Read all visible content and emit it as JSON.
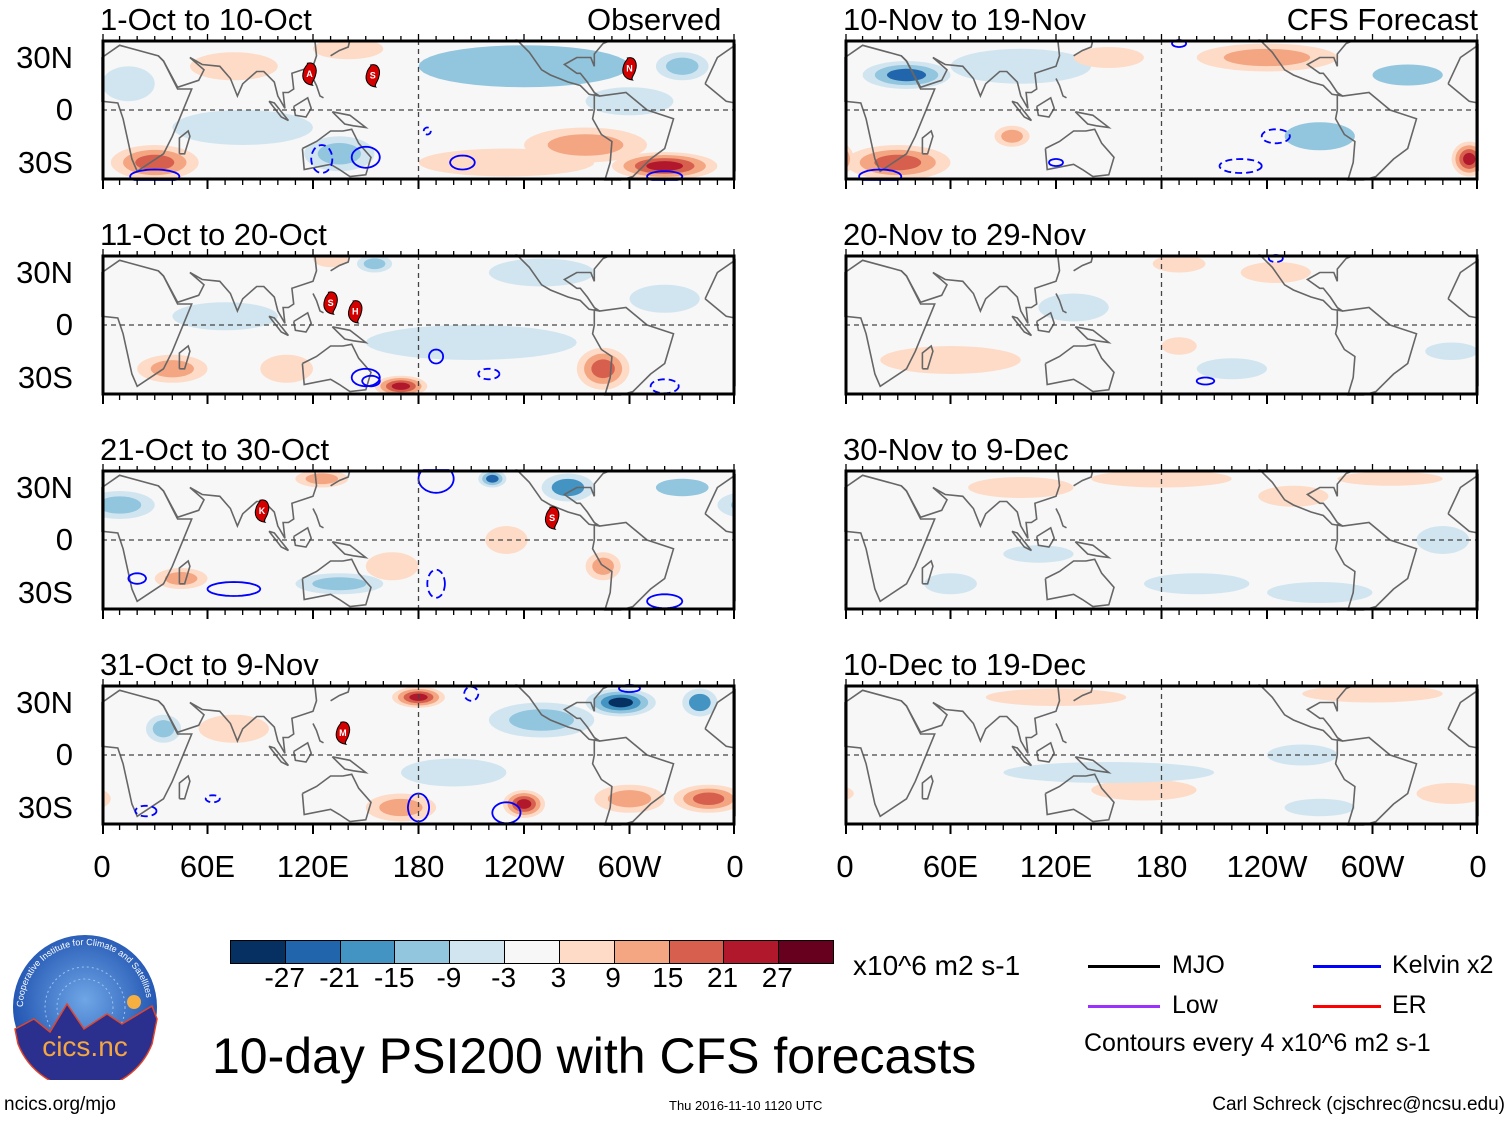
{
  "figure_title": "10-day PSI200 with CFS forecasts",
  "header": {
    "left_label": "Observed",
    "right_label": "CFS Forecast"
  },
  "lat_labels": [
    "30N",
    "0",
    "30S"
  ],
  "lon_labels": [
    "0",
    "60E",
    "120E",
    "180",
    "120W",
    "60W",
    "0"
  ],
  "colorbar": {
    "ticks": [
      "-27",
      "-21",
      "-15",
      "-9",
      "-3",
      "3",
      "9",
      "15",
      "21",
      "27"
    ],
    "colors": [
      "#053061",
      "#2166ac",
      "#4393c3",
      "#92c5de",
      "#d1e5f0",
      "#f7f7f7",
      "#fddbc7",
      "#f4a582",
      "#d6604d",
      "#b2182b",
      "#67001f"
    ],
    "units": "x10^6 m2 s-1"
  },
  "legend": {
    "items": [
      {
        "label": "MJO",
        "color": "#000000"
      },
      {
        "label": "Kelvin x2",
        "color": "#0000ff"
      },
      {
        "label": "Low",
        "color": "#9b30ff"
      },
      {
        "label": "ER",
        "color": "#ff0000"
      }
    ],
    "note": "Contours every 4 x10^6 m2 s-1"
  },
  "footer": {
    "url": "ncics.org/mjo",
    "timestamp": "Thu 2016-11-10 1120 UTC",
    "credit": "Carl Schreck (cjschrec@ncsu.edu)"
  },
  "logo": {
    "name": "cics.nc",
    "ring_text": "Cooperative Institute for Climate and Satellites"
  },
  "chart_data": {
    "type": "heatmap",
    "variable": "PSI200 anomaly",
    "units": "x10^6 m2 s-1",
    "lat_range": [
      -40,
      40
    ],
    "lon_range": [
      0,
      360
    ],
    "panels_observed": [
      {
        "title": "1-Oct to 10-Oct",
        "storms": [
          {
            "letter": "A",
            "lon": 118,
            "lat": 21
          },
          {
            "letter": "S",
            "lon": 154,
            "lat": 20
          },
          {
            "letter": "N",
            "lon": 300,
            "lat": 24
          }
        ],
        "features": [
          [
            30,
            -30,
            25,
            10,
            18
          ],
          [
            320,
            -32,
            30,
            8,
            27
          ],
          [
            275,
            -20,
            35,
            10,
            12
          ],
          [
            230,
            -30,
            50,
            8,
            8
          ],
          [
            140,
            35,
            20,
            6,
            9
          ],
          [
            75,
            25,
            25,
            8,
            5
          ],
          [
            240,
            25,
            60,
            12,
            -9
          ],
          [
            330,
            25,
            15,
            8,
            -12
          ],
          [
            135,
            -25,
            20,
            10,
            -12
          ],
          [
            80,
            -10,
            40,
            10,
            -4
          ],
          [
            15,
            15,
            15,
            10,
            -4
          ],
          [
            300,
            5,
            25,
            8,
            -6
          ]
        ],
        "contours": [
          [
            125,
            -28,
            6,
            8,
            1
          ],
          [
            150,
            -27,
            8,
            6,
            0
          ],
          [
            205,
            -30,
            7,
            4,
            0
          ],
          [
            30,
            -38,
            14,
            4,
            0
          ],
          [
            320,
            -38,
            10,
            3,
            0
          ],
          [
            185,
            -12,
            2,
            2,
            1
          ]
        ]
      },
      {
        "title": "11-Oct to 20-Oct",
        "storms": [
          {
            "letter": "S",
            "lon": 130,
            "lat": 13
          },
          {
            "letter": "H",
            "lon": 144,
            "lat": 8
          }
        ],
        "features": [
          [
            40,
            -25,
            20,
            8,
            15
          ],
          [
            170,
            -35,
            15,
            6,
            24
          ],
          [
            285,
            -25,
            15,
            12,
            21
          ],
          [
            105,
            -25,
            15,
            8,
            9
          ],
          [
            130,
            38,
            10,
            5,
            9
          ],
          [
            155,
            35,
            10,
            5,
            -12
          ],
          [
            320,
            15,
            20,
            8,
            -6
          ],
          [
            210,
            -10,
            60,
            10,
            -4
          ],
          [
            250,
            30,
            30,
            8,
            -6
          ],
          [
            70,
            5,
            30,
            8,
            -4
          ]
        ],
        "contours": [
          [
            150,
            -30,
            8,
            5,
            0
          ],
          [
            153,
            -32,
            5,
            3,
            0
          ],
          [
            190,
            -18,
            4,
            4,
            0
          ],
          [
            220,
            -28,
            6,
            3,
            1
          ],
          [
            320,
            -35,
            8,
            4,
            1
          ]
        ]
      },
      {
        "title": "21-Oct to 30-Oct",
        "storms": [
          {
            "letter": "K",
            "lon": 91,
            "lat": 17
          },
          {
            "letter": "S",
            "lon": 256,
            "lat": 13
          }
        ],
        "features": [
          [
            125,
            35,
            15,
            5,
            12
          ],
          [
            45,
            -22,
            15,
            6,
            12
          ],
          [
            165,
            -15,
            15,
            8,
            9
          ],
          [
            285,
            -15,
            10,
            8,
            12
          ],
          [
            230,
            0,
            12,
            8,
            6
          ],
          [
            10,
            20,
            20,
            8,
            -12
          ],
          [
            135,
            -25,
            25,
            6,
            -12
          ],
          [
            265,
            30,
            15,
            8,
            -15
          ],
          [
            222,
            35,
            8,
            5,
            -21
          ],
          [
            330,
            30,
            15,
            5,
            -9
          ]
        ],
        "contours": [
          [
            75,
            -28,
            15,
            4,
            0
          ],
          [
            190,
            -25,
            5,
            8,
            1
          ],
          [
            190,
            35,
            10,
            8,
            0
          ],
          [
            20,
            -22,
            5,
            3,
            0
          ],
          [
            320,
            -35,
            10,
            4,
            0
          ]
        ]
      },
      {
        "title": "31-Oct to 9-Nov",
        "storms": [
          {
            "letter": "M",
            "lon": 137,
            "lat": 13
          }
        ],
        "features": [
          [
            180,
            33,
            15,
            6,
            27
          ],
          [
            240,
            -28,
            12,
            8,
            24
          ],
          [
            345,
            -25,
            20,
            8,
            21
          ],
          [
            170,
            -30,
            20,
            8,
            15
          ],
          [
            75,
            15,
            20,
            8,
            6
          ],
          [
            300,
            -25,
            20,
            8,
            12
          ],
          [
            295,
            30,
            20,
            8,
            -27
          ],
          [
            250,
            20,
            30,
            10,
            -12
          ],
          [
            340,
            30,
            10,
            8,
            -15
          ],
          [
            35,
            15,
            10,
            8,
            -12
          ],
          [
            200,
            -10,
            30,
            8,
            -6
          ]
        ],
        "contours": [
          [
            180,
            -30,
            6,
            8,
            0
          ],
          [
            230,
            -33,
            8,
            6,
            0
          ],
          [
            300,
            38,
            6,
            2,
            0
          ],
          [
            210,
            35,
            4,
            4,
            1
          ],
          [
            25,
            -32,
            6,
            3,
            1
          ],
          [
            63,
            -25,
            4,
            2,
            1
          ]
        ]
      }
    ],
    "panels_forecast": [
      {
        "title": "10-Nov to 19-Nov",
        "storms": [],
        "features": [
          [
            35,
            20,
            25,
            8,
            -21
          ],
          [
            30,
            -30,
            30,
            10,
            18
          ],
          [
            355,
            -28,
            10,
            10,
            24
          ],
          [
            240,
            30,
            40,
            8,
            12
          ],
          [
            95,
            -15,
            10,
            6,
            15
          ],
          [
            270,
            -15,
            20,
            8,
            -9
          ],
          [
            100,
            25,
            40,
            10,
            -6
          ],
          [
            150,
            30,
            20,
            6,
            9
          ],
          [
            320,
            20,
            20,
            6,
            -9
          ]
        ],
        "contours": [
          [
            245,
            -15,
            8,
            4,
            1
          ],
          [
            120,
            -30,
            4,
            2,
            0
          ],
          [
            225,
            -32,
            12,
            4,
            1
          ],
          [
            20,
            -38,
            12,
            4,
            0
          ],
          [
            190,
            38,
            4,
            2,
            0
          ]
        ]
      },
      {
        "title": "20-Nov to 29-Nov",
        "storms": [],
        "features": [
          [
            190,
            35,
            15,
            5,
            9
          ],
          [
            190,
            -12,
            10,
            5,
            9
          ],
          [
            245,
            30,
            20,
            6,
            6
          ],
          [
            60,
            -20,
            40,
            8,
            4
          ],
          [
            130,
            10,
            20,
            8,
            -4
          ],
          [
            345,
            -15,
            15,
            5,
            -6
          ],
          [
            220,
            -25,
            20,
            6,
            -4
          ]
        ],
        "contours": [
          [
            205,
            -32,
            5,
            2,
            0
          ],
          [
            245,
            38,
            4,
            2,
            1
          ]
        ]
      },
      {
        "title": "30-Nov to 9-Dec",
        "storms": [],
        "features": [
          [
            180,
            35,
            40,
            5,
            9
          ],
          [
            100,
            30,
            30,
            6,
            6
          ],
          [
            310,
            35,
            30,
            4,
            6
          ],
          [
            255,
            25,
            20,
            6,
            4
          ],
          [
            270,
            -30,
            30,
            6,
            -6
          ],
          [
            110,
            -8,
            20,
            5,
            -5
          ],
          [
            340,
            0,
            15,
            8,
            -4
          ],
          [
            60,
            -25,
            15,
            6,
            -4
          ],
          [
            200,
            -25,
            30,
            6,
            -4
          ]
        ],
        "contours": []
      },
      {
        "title": "10-Dec to 19-Dec",
        "storms": [],
        "features": [
          [
            120,
            33,
            40,
            5,
            6
          ],
          [
            300,
            35,
            40,
            5,
            6
          ],
          [
            345,
            -22,
            20,
            6,
            9
          ],
          [
            170,
            -20,
            30,
            6,
            4
          ],
          [
            150,
            -10,
            60,
            6,
            -4
          ],
          [
            260,
            0,
            20,
            6,
            -4
          ],
          [
            270,
            -30,
            20,
            5,
            -4
          ]
        ],
        "contours": []
      }
    ]
  }
}
